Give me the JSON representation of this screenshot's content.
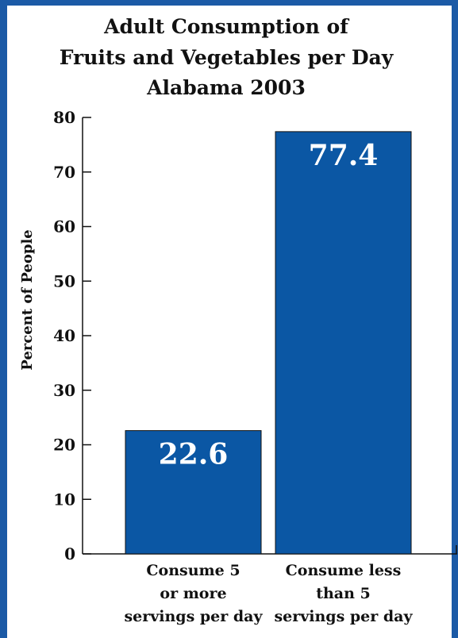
{
  "chart_data": {
    "type": "bar",
    "title": [
      "Adult Consumption of",
      "Fruits and Vegetables per Day",
      "Alabama 2003"
    ],
    "ylabel": "Percent of People",
    "xlabel": "",
    "ylim": [
      0,
      80
    ],
    "yticks": [
      "0",
      "10",
      "20",
      "30",
      "40",
      "50",
      "60",
      "70",
      "80"
    ],
    "categories": [
      [
        "Consume 5",
        "or more",
        "servings per day"
      ],
      [
        "Consume less",
        "than 5",
        "servings per day"
      ]
    ],
    "values": [
      22.6,
      77.4
    ],
    "data_labels": [
      "22.6",
      "77.4"
    ],
    "bar_color": "#0b57a4",
    "frame_color": "#1b5aa6",
    "grid": false,
    "legend": "none"
  }
}
